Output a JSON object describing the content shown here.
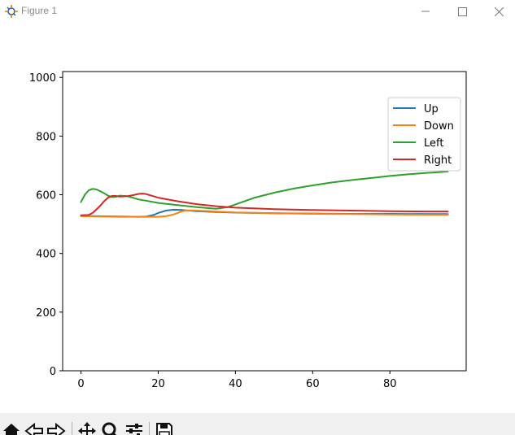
{
  "window": {
    "title": "Figure 1",
    "icons": {
      "app": "matplotlib-figure-icon",
      "minimize": "minimize-icon",
      "maximize": "maximize-icon",
      "close": "close-icon"
    }
  },
  "toolbar": {
    "buttons": [
      "home-icon",
      "back-icon",
      "forward-icon",
      "pan-icon",
      "zoom-icon",
      "configure-subplots-icon",
      "save-icon"
    ]
  },
  "chart_data": {
    "type": "line",
    "title": "",
    "xlabel": "",
    "ylabel": "",
    "xlim": [
      -4.75,
      99.75
    ],
    "ylim": [
      0,
      1020
    ],
    "xticks": [
      0,
      20,
      40,
      60,
      80
    ],
    "yticks": [
      0,
      200,
      400,
      600,
      800,
      1000
    ],
    "legend_position": "top-right",
    "grid": false,
    "series": [
      {
        "name": "Up",
        "color": "#1f77b4",
        "x": [
          0,
          5,
          10,
          15,
          17,
          19,
          20,
          22,
          24,
          26,
          28,
          30,
          35,
          40,
          50,
          60,
          70,
          80,
          90,
          95
        ],
        "y": [
          528,
          527,
          526,
          525,
          526,
          532,
          538,
          546,
          549,
          548,
          546,
          544,
          541,
          539,
          537,
          536,
          535,
          535,
          534,
          534
        ]
      },
      {
        "name": "Down",
        "color": "#ff7f0e",
        "x": [
          0,
          5,
          10,
          15,
          18,
          20,
          22,
          24,
          25,
          26,
          27,
          28,
          30,
          35,
          40,
          50,
          60,
          70,
          80,
          90,
          95
        ],
        "y": [
          527,
          526,
          525,
          525,
          525,
          525,
          527,
          533,
          538,
          543,
          546,
          547,
          546,
          543,
          540,
          537,
          535,
          534,
          533,
          532,
          532
        ]
      },
      {
        "name": "Left",
        "color": "#2ca02c",
        "x": [
          0,
          1,
          2,
          3,
          4,
          5,
          6,
          7,
          8,
          9,
          10,
          12,
          15,
          18,
          20,
          25,
          30,
          35,
          38,
          40,
          45,
          50,
          55,
          60,
          65,
          70,
          75,
          80,
          85,
          90,
          95
        ],
        "y": [
          575,
          600,
          615,
          620,
          618,
          612,
          605,
          597,
          592,
          593,
          597,
          595,
          584,
          577,
          572,
          565,
          558,
          552,
          558,
          567,
          590,
          607,
          621,
          632,
          642,
          650,
          657,
          664,
          670,
          675,
          679
        ]
      },
      {
        "name": "Right",
        "color": "#d62728",
        "x": [
          0,
          2,
          3,
          4,
          5,
          6,
          7,
          8,
          9,
          10,
          12,
          14,
          15,
          16,
          17,
          18,
          20,
          25,
          30,
          35,
          40,
          50,
          60,
          70,
          80,
          90,
          95
        ],
        "y": [
          530,
          531,
          538,
          550,
          563,
          578,
          590,
          596,
          596,
          594,
          595,
          600,
          603,
          604,
          602,
          598,
          590,
          578,
          568,
          561,
          556,
          551,
          548,
          546,
          544,
          543,
          543
        ]
      }
    ]
  }
}
